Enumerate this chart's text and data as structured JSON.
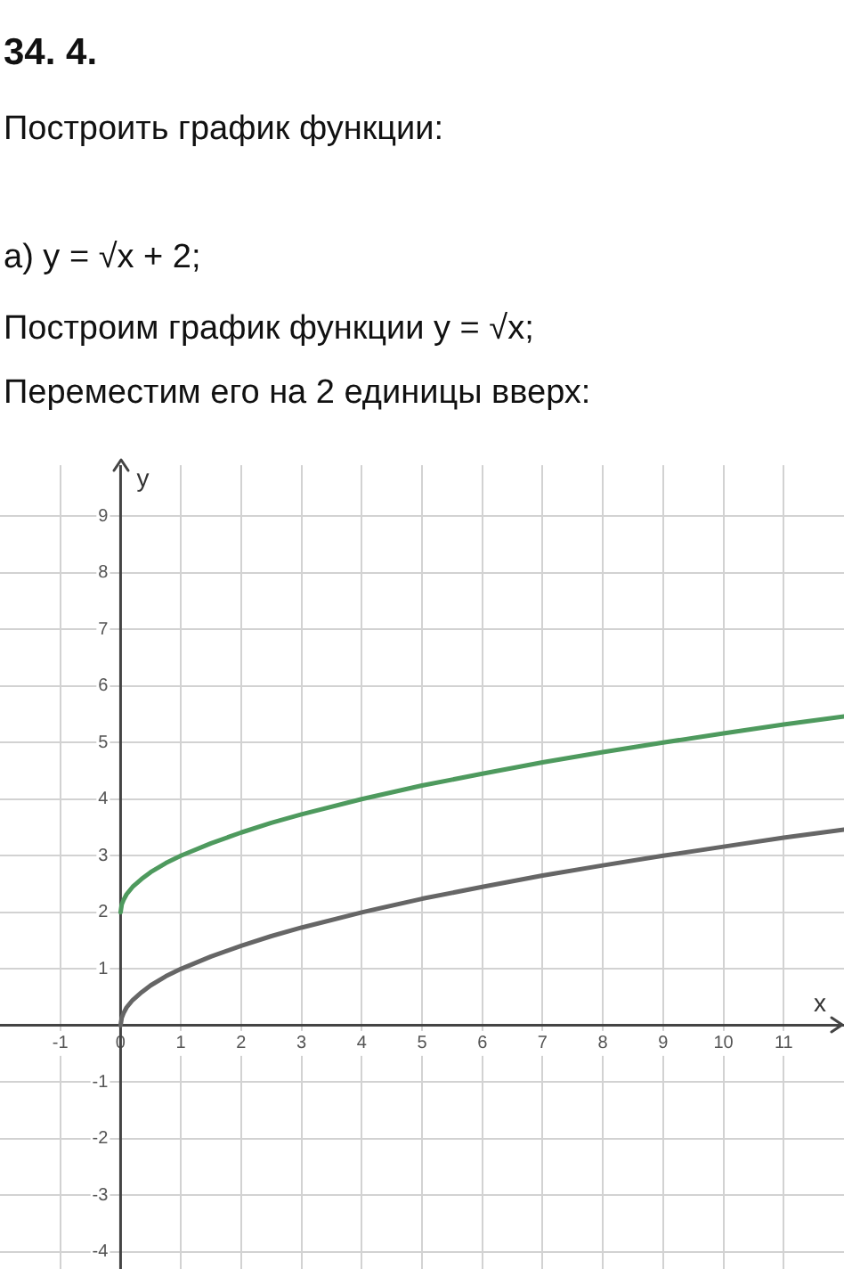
{
  "chart_data": {
    "type": "line",
    "title": "34. 4.",
    "subtitle": "Построить график функции:",
    "annotations": [
      "а) y = √x + 2;",
      "Построим график функции y = √x;",
      "Переместим его на 2 единицы вверх:"
    ],
    "xlabel": "x",
    "ylabel": "y",
    "x": [
      0,
      0.02,
      0.05,
      0.1,
      0.2,
      0.35,
      0.5,
      0.75,
      1,
      1.5,
      2,
      2.5,
      3,
      4,
      5,
      6,
      7,
      8,
      9,
      10,
      11,
      12
    ],
    "series": [
      {
        "color": "#4e9a5e",
        "values": [
          2,
          2.14,
          2.22,
          2.32,
          2.45,
          2.59,
          2.71,
          2.87,
          3,
          3.22,
          3.41,
          3.58,
          3.73,
          4,
          4.24,
          4.45,
          4.65,
          4.83,
          5,
          5.16,
          5.32,
          5.46
        ]
      },
      {
        "color": "#666666",
        "values": [
          0,
          0.14,
          0.22,
          0.32,
          0.45,
          0.59,
          0.71,
          0.87,
          1,
          1.22,
          1.41,
          1.58,
          1.73,
          2,
          2.24,
          2.45,
          2.65,
          2.83,
          3,
          3.16,
          3.32,
          3.46
        ]
      }
    ],
    "xlim": [
      -2,
      12
    ],
    "ylim": [
      -4.3,
      9.9
    ],
    "xticks": [
      -1,
      0,
      1,
      2,
      3,
      4,
      5,
      6,
      7,
      8,
      9,
      10,
      11
    ],
    "yticks": [
      -4,
      -3,
      -2,
      -1,
      1,
      2,
      3,
      4,
      5,
      6,
      7,
      8,
      9
    ],
    "grid": true,
    "marker": "none",
    "line_style": "solid"
  }
}
